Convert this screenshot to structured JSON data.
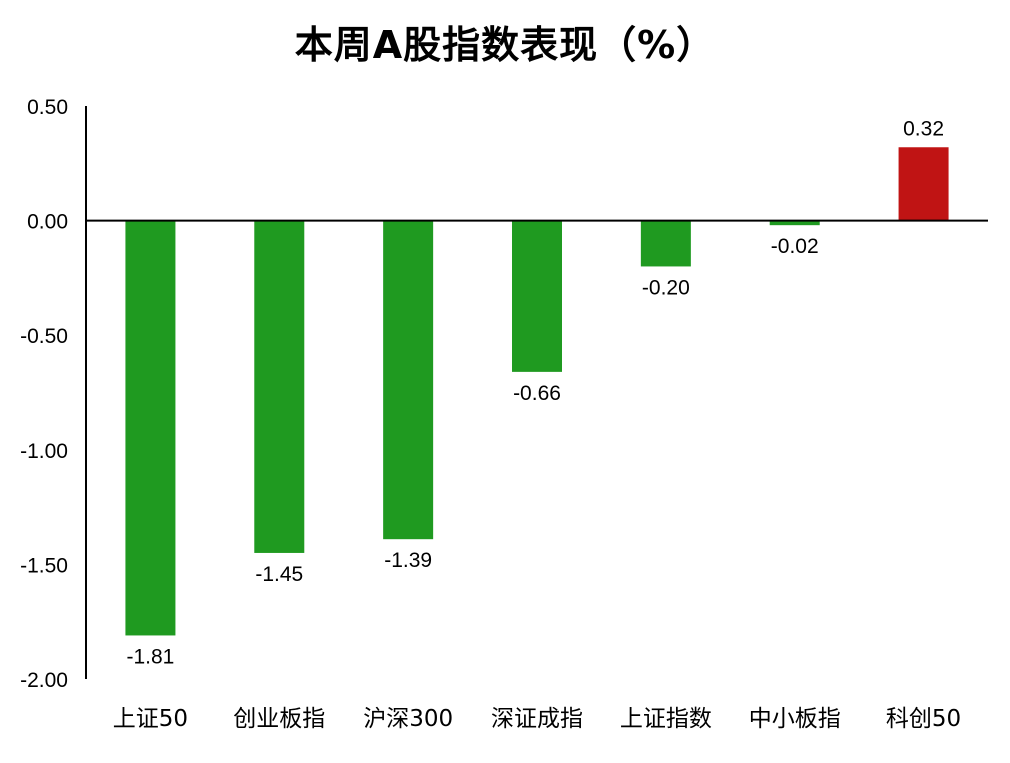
{
  "colors": {
    "negative": "#1f9a20",
    "positive": "#c01414",
    "axis": "#000000"
  },
  "chart_data": {
    "type": "bar",
    "title": "本周A股指数表现（%）",
    "xlabel": "",
    "ylabel": "",
    "categories": [
      "上证50",
      "创业板指",
      "沪深300",
      "深证成指",
      "上证指数",
      "中小板指",
      "科创50"
    ],
    "values": [
      -1.81,
      -1.45,
      -1.39,
      -0.66,
      -0.2,
      -0.02,
      0.32
    ],
    "data_labels": [
      "-1.81",
      "-1.45",
      "-1.39",
      "-0.66",
      "-0.20",
      "-0.02",
      "0.32"
    ],
    "ylim": [
      -2.0,
      0.5
    ],
    "yticks": [
      0.5,
      0.0,
      -0.5,
      -1.0,
      -1.5,
      -2.0
    ],
    "ytick_labels": [
      "0.50",
      "0.00",
      "-0.50",
      "-1.00",
      "-1.50",
      "-2.00"
    ],
    "grid": false,
    "legend": "none"
  }
}
